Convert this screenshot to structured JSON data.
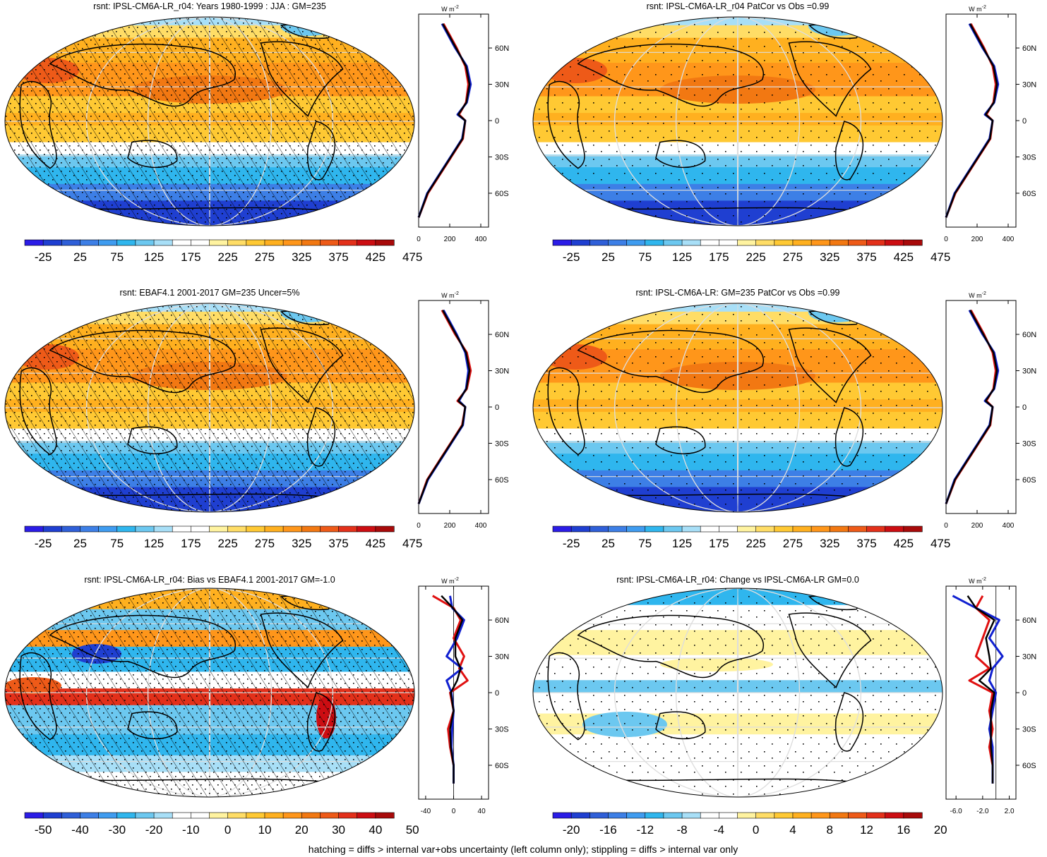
{
  "panels": [
    {
      "title": "rsnt: IPSL-CM6A-LR_r04: Years 1980-1999 : JJA : GM=235",
      "kind": "mean",
      "hatch": true,
      "stipple": "dense"
    },
    {
      "title": "rsnt: IPSL-CM6A-LR_r04 PatCor vs Obs =0.99",
      "kind": "mean",
      "hatch": false,
      "stipple": "sparse"
    },
    {
      "title": "rsnt: EBAF4.1 2001-2017 GM=235 Uncer=5%",
      "kind": "mean",
      "hatch": true,
      "stipple": "dense"
    },
    {
      "title": "rsnt: IPSL-CM6A-LR: GM=235 PatCor vs Obs =0.99",
      "kind": "mean",
      "hatch": false,
      "stipple": "sparse"
    },
    {
      "title": "rsnt: IPSL-CM6A-LR_r04: Bias vs EBAF4.1 2001-2017 GM=-1.0",
      "kind": "bias",
      "hatch": true,
      "stipple": "dense"
    },
    {
      "title": "rsnt: IPSL-CM6A-LR_r04: Change vs IPSL-CM6A-LR GM=0.0",
      "kind": "change",
      "hatch": false,
      "stipple": "sparse"
    }
  ],
  "colorbars": {
    "mean": [
      "-25",
      "25",
      "75",
      "125",
      "175",
      "225",
      "275",
      "325",
      "375",
      "425",
      "475"
    ],
    "bias": [
      "-50",
      "-40",
      "-30",
      "-20",
      "-10",
      "0",
      "10",
      "20",
      "30",
      "40",
      "50"
    ],
    "change": [
      "-20",
      "-16",
      "-12",
      "-8",
      "-4",
      "0",
      "4",
      "8",
      "12",
      "16",
      "20"
    ]
  },
  "palette": [
    "#2b1ce6",
    "#1f3fd1",
    "#2f5fd8",
    "#3d7fe6",
    "#3f9cf0",
    "#2fb6ee",
    "#6cc8f0",
    "#a8dff7",
    "#ffffff",
    "#ffffff",
    "#fff3a0",
    "#ffdd66",
    "#ffc933",
    "#ffb01f",
    "#ff961a",
    "#f27812",
    "#ee5a18",
    "#e3301a",
    "#cc0d12",
    "#a80a0a"
  ],
  "zonal_axis": {
    "unit": "W m",
    "unit_sup": "-2",
    "lat_labels": [
      "60N",
      "30N",
      "0",
      "30S",
      "60S"
    ],
    "mean_ticks": [
      "0",
      "200",
      "400"
    ],
    "bias_ticks": [
      "-40",
      "0",
      "40"
    ],
    "change_ticks": [
      "-6.0",
      "-2.0",
      "2.0"
    ]
  },
  "footnote": "hatching = diffs > internal var+obs uncertainty (left column only); stippling = diffs > internal var only",
  "chart_data": [
    {
      "type": "heatmap",
      "title": "rsnt: IPSL-CM6A-LR_r04: Years 1980-1999 : JJA : GM=235",
      "colorbar_levels": [
        -25,
        25,
        75,
        125,
        175,
        225,
        275,
        325,
        375,
        425,
        475
      ],
      "zonal_mean": {
        "lat": [
          80,
          60,
          45,
          30,
          15,
          5,
          0,
          -15,
          -30,
          -45,
          -60,
          -80
        ],
        "model": [
          150,
          235,
          310,
          335,
          310,
          250,
          300,
          280,
          205,
          130,
          55,
          0
        ],
        "obs": [
          160,
          245,
          300,
          320,
          305,
          260,
          300,
          285,
          210,
          135,
          60,
          0
        ]
      }
    },
    {
      "type": "heatmap",
      "title": "rsnt: IPSL-CM6A-LR_r04 PatCor vs Obs =0.99",
      "colorbar_levels": [
        -25,
        25,
        75,
        125,
        175,
        225,
        275,
        325,
        375,
        425,
        475
      ],
      "zonal_mean": {
        "lat": [
          80,
          60,
          45,
          30,
          15,
          5,
          0,
          -15,
          -30,
          -45,
          -60,
          -80
        ],
        "model": [
          150,
          235,
          310,
          335,
          310,
          250,
          300,
          280,
          205,
          130,
          55,
          0
        ],
        "obs": [
          160,
          245,
          300,
          320,
          305,
          260,
          300,
          285,
          210,
          135,
          60,
          0
        ]
      }
    },
    {
      "type": "heatmap",
      "title": "rsnt: EBAF4.1 2001-2017 GM=235 Uncer=5%",
      "colorbar_levels": [
        -25,
        25,
        75,
        125,
        175,
        225,
        275,
        325,
        375,
        425,
        475
      ],
      "zonal_mean": {
        "lat": [
          80,
          60,
          45,
          30,
          15,
          5,
          0,
          -15,
          -30,
          -45,
          -60,
          -80
        ],
        "model": [
          160,
          245,
          300,
          320,
          305,
          260,
          300,
          285,
          210,
          135,
          60,
          0
        ],
        "obs": [
          150,
          235,
          310,
          335,
          310,
          250,
          300,
          280,
          205,
          130,
          55,
          0
        ]
      }
    },
    {
      "type": "heatmap",
      "title": "rsnt: IPSL-CM6A-LR: GM=235 PatCor vs Obs =0.99",
      "colorbar_levels": [
        -25,
        25,
        75,
        125,
        175,
        225,
        275,
        325,
        375,
        425,
        475
      ],
      "zonal_mean": {
        "lat": [
          80,
          60,
          45,
          30,
          15,
          5,
          0,
          -15,
          -30,
          -45,
          -60,
          -80
        ],
        "model": [
          150,
          235,
          310,
          335,
          310,
          250,
          300,
          280,
          205,
          130,
          55,
          0
        ],
        "obs": [
          160,
          245,
          300,
          320,
          305,
          260,
          300,
          285,
          210,
          135,
          60,
          0
        ]
      }
    },
    {
      "type": "heatmap",
      "title": "rsnt: IPSL-CM6A-LR_r04: Bias vs EBAF4.1 2001-2017 GM=-1.0",
      "colorbar_levels": [
        -50,
        -40,
        -30,
        -20,
        -10,
        0,
        10,
        20,
        30,
        40,
        50
      ],
      "zonal_mean": {
        "lat": [
          80,
          70,
          60,
          45,
          30,
          20,
          10,
          0,
          -15,
          -30,
          -45,
          -60,
          -75
        ],
        "model": [
          -5,
          -2,
          15,
          5,
          -10,
          12,
          -10,
          -3,
          0,
          -2,
          -3,
          0,
          0
        ],
        "obs": [
          -30,
          0,
          10,
          0,
          15,
          8,
          20,
          -5,
          0,
          -8,
          -5,
          0,
          0
        ]
      }
    },
    {
      "type": "heatmap",
      "title": "rsnt: IPSL-CM6A-LR_r04: Change vs IPSL-CM6A-LR GM=0.0",
      "colorbar_levels": [
        -20,
        -16,
        -12,
        -8,
        -4,
        0,
        4,
        8,
        12,
        16,
        20
      ],
      "zonal_mean": {
        "lat": [
          80,
          70,
          60,
          45,
          30,
          20,
          10,
          0,
          -15,
          -30,
          -45,
          -60,
          -75
        ],
        "model": [
          -6.5,
          -3,
          0.5,
          -1,
          1,
          -0.5,
          -1,
          0,
          -0.5,
          -1,
          -0.5,
          -0.5,
          -0.5
        ],
        "obs": [
          -2,
          -3,
          -1,
          -2,
          -3,
          -1,
          -4,
          -0.5,
          -1,
          -0.5,
          -1,
          -0.5,
          -0.5
        ]
      }
    }
  ]
}
